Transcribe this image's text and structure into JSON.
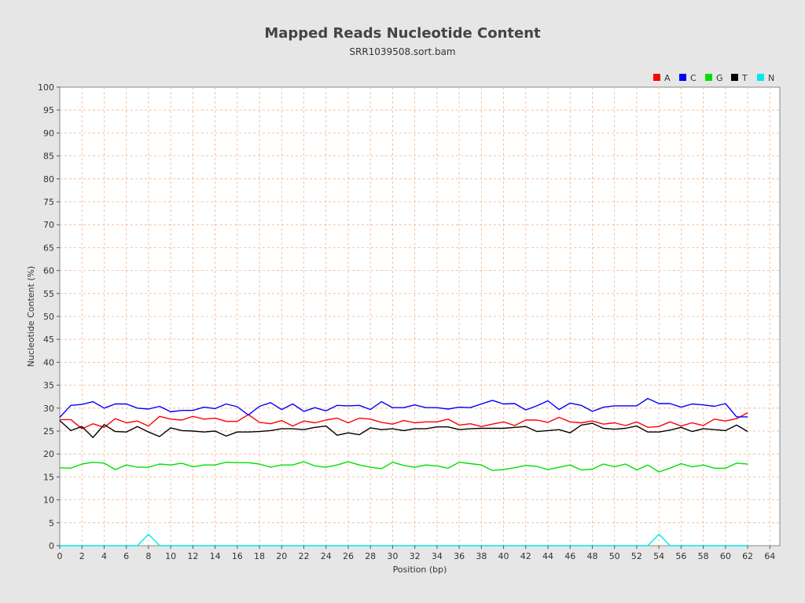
{
  "chart_data": {
    "type": "line",
    "title": "Mapped Reads Nucleotide Content",
    "subtitle": "SRR1039508.sort.bam",
    "xlabel": "Position (bp)",
    "ylabel": "Nucleotide Content (%)",
    "xlim": [
      0,
      64.9
    ],
    "ylim": [
      0,
      100
    ],
    "xticks": [
      0,
      2,
      4,
      6,
      8,
      10,
      12,
      14,
      16,
      18,
      20,
      22,
      24,
      26,
      28,
      30,
      32,
      34,
      36,
      38,
      40,
      42,
      44,
      46,
      48,
      50,
      52,
      54,
      56,
      58,
      60,
      62,
      64
    ],
    "yticks": [
      0,
      5,
      10,
      15,
      20,
      25,
      30,
      35,
      40,
      45,
      50,
      55,
      60,
      65,
      70,
      75,
      80,
      85,
      90,
      95,
      100
    ],
    "grid": true,
    "legend_position": "top-right",
    "x": [
      0,
      1,
      2,
      3,
      4,
      5,
      6,
      7,
      8,
      9,
      10,
      11,
      12,
      13,
      14,
      15,
      16,
      17,
      18,
      19,
      20,
      21,
      22,
      23,
      24,
      25,
      26,
      27,
      28,
      29,
      30,
      31,
      32,
      33,
      34,
      35,
      36,
      37,
      38,
      39,
      40,
      41,
      42,
      43,
      44,
      45,
      46,
      47,
      48,
      49,
      50,
      51,
      52,
      53,
      54,
      55,
      56,
      57,
      58,
      59,
      60,
      61,
      62
    ],
    "series": [
      {
        "name": "A",
        "color": "#ff0000",
        "values": [
          27.5,
          27.5,
          25.5,
          26.6,
          25.8,
          27.7,
          26.8,
          27.2,
          26.1,
          28.2,
          27.6,
          27.4,
          28.2,
          27.6,
          27.8,
          27.1,
          27.1,
          28.6,
          26.9,
          26.6,
          27.3,
          26.1,
          27.2,
          26.8,
          27.4,
          27.8,
          26.8,
          27.8,
          27.6,
          26.9,
          26.5,
          27.3,
          26.8,
          27.0,
          27.0,
          27.6,
          26.3,
          26.6,
          26.0,
          26.5,
          27.0,
          26.2,
          27.4,
          27.4,
          26.9,
          28.0,
          27.0,
          26.8,
          27.2,
          26.5,
          26.8,
          26.2,
          27.0,
          25.8,
          26.0,
          27.0,
          26.1,
          26.8,
          26.2,
          27.6,
          27.2,
          27.7,
          29.0
        ]
      },
      {
        "name": "C",
        "color": "#0000ff",
        "values": [
          28.0,
          30.6,
          30.8,
          31.4,
          30.0,
          30.9,
          30.9,
          30.0,
          29.8,
          30.4,
          29.2,
          29.5,
          29.5,
          30.2,
          29.9,
          30.9,
          30.3,
          28.5,
          30.4,
          31.2,
          29.7,
          30.9,
          29.3,
          30.1,
          29.4,
          30.6,
          30.5,
          30.6,
          29.7,
          31.4,
          30.1,
          30.1,
          30.7,
          30.1,
          30.1,
          29.8,
          30.2,
          30.1,
          30.9,
          31.7,
          30.9,
          31.0,
          29.6,
          30.5,
          31.6,
          29.7,
          31.1,
          30.6,
          29.3,
          30.2,
          30.5,
          30.5,
          30.5,
          32.1,
          31.0,
          31.0,
          30.2,
          30.9,
          30.7,
          30.4,
          31.0,
          28.1,
          28.1
        ]
      },
      {
        "name": "G",
        "color": "#00e000",
        "values": [
          17.0,
          16.9,
          17.8,
          18.2,
          18.0,
          16.6,
          17.6,
          17.1,
          17.1,
          17.8,
          17.6,
          18.0,
          17.2,
          17.6,
          17.6,
          18.2,
          18.1,
          18.1,
          17.8,
          17.1,
          17.6,
          17.6,
          18.3,
          17.4,
          17.1,
          17.6,
          18.3,
          17.6,
          17.1,
          16.8,
          18.2,
          17.5,
          17.1,
          17.6,
          17.4,
          16.9,
          18.2,
          17.9,
          17.6,
          16.4,
          16.6,
          17.0,
          17.5,
          17.3,
          16.6,
          17.1,
          17.6,
          16.5,
          16.7,
          17.8,
          17.2,
          17.8,
          16.5,
          17.6,
          16.1,
          16.9,
          17.9,
          17.2,
          17.6,
          16.9,
          16.9,
          18.0,
          17.8
        ]
      },
      {
        "name": "T",
        "color": "#000000",
        "values": [
          27.3,
          25.1,
          26.0,
          23.6,
          26.4,
          24.9,
          24.8,
          26.0,
          24.8,
          23.8,
          25.7,
          25.1,
          25.0,
          24.8,
          25.0,
          23.9,
          24.8,
          24.8,
          24.9,
          25.1,
          25.5,
          25.5,
          25.3,
          25.8,
          26.1,
          24.1,
          24.6,
          24.2,
          25.7,
          25.3,
          25.5,
          25.1,
          25.5,
          25.5,
          25.9,
          25.9,
          25.3,
          25.5,
          25.6,
          25.6,
          25.6,
          25.8,
          26.0,
          24.9,
          25.1,
          25.3,
          24.6,
          26.3,
          26.7,
          25.6,
          25.4,
          25.6,
          26.1,
          24.8,
          24.8,
          25.2,
          25.8,
          24.9,
          25.5,
          25.3,
          25.1,
          26.3,
          24.9
        ]
      },
      {
        "name": "N",
        "color": "#00eaea",
        "values": [
          0,
          0,
          0,
          0,
          0,
          0,
          0,
          0,
          2.5,
          0,
          0,
          0,
          0,
          0,
          0,
          0,
          0,
          0,
          0,
          0,
          0,
          0,
          0,
          0,
          0,
          0,
          0,
          0,
          0,
          0,
          0,
          0,
          0,
          0,
          0,
          0,
          0,
          0,
          0,
          0,
          0,
          0,
          0,
          0,
          0,
          0,
          0,
          0,
          0,
          0,
          0,
          0,
          0,
          0,
          2.5,
          0,
          0,
          0,
          0,
          0,
          0,
          0,
          0
        ]
      }
    ]
  }
}
